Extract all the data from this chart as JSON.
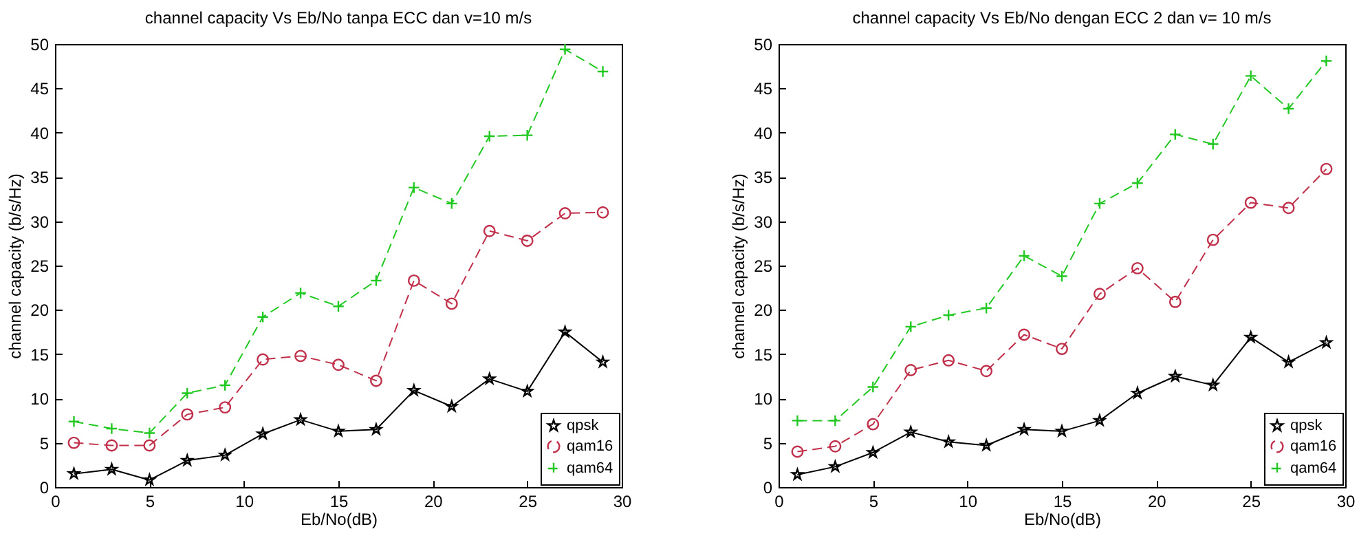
{
  "chart_data": [
    {
      "type": "line",
      "title": "channel capacity Vs Eb/No tanpa ECC dan v=10 m/s",
      "xlabel": "Eb/No(dB)",
      "ylabel": "channel capacity (b/s/Hz)",
      "x": [
        1,
        3,
        5,
        7,
        9,
        11,
        13,
        15,
        17,
        19,
        21,
        23,
        25,
        27,
        29
      ],
      "xlim": [
        0,
        30
      ],
      "xticks": [
        0,
        5,
        10,
        15,
        20,
        25,
        30
      ],
      "ylim": [
        0,
        50
      ],
      "yticks": [
        0,
        5,
        10,
        15,
        20,
        25,
        30,
        35,
        40,
        45,
        50
      ],
      "grid": false,
      "legend": "bottom right",
      "series": [
        {
          "name": "qpsk",
          "color": "#000000",
          "marker": "star",
          "line_style": "solid",
          "values": [
            1.5,
            2,
            0.8,
            3,
            3.6,
            6,
            7.6,
            6.3,
            6.5,
            10.9,
            9.1,
            12.2,
            10.8,
            17.5,
            14.1
          ]
        },
        {
          "name": "qam16",
          "color": "#c0304a",
          "marker": "circle",
          "line_style": "dashed",
          "values": [
            5,
            4.7,
            4.7,
            8.2,
            9,
            14.4,
            14.8,
            13.8,
            12,
            23.3,
            20.7,
            28.9,
            27.8,
            30.9,
            31
          ]
        },
        {
          "name": "qam64",
          "color": "#22c822",
          "marker": "cross",
          "line_style": "dashed",
          "values": [
            7.4,
            6.6,
            6.1,
            10.6,
            11.5,
            19.2,
            21.9,
            20.4,
            23.3,
            33.8,
            32,
            39.6,
            39.7,
            49.4,
            46.9
          ]
        }
      ]
    },
    {
      "type": "line",
      "title": "channel capacity Vs Eb/No dengan ECC 2 dan v= 10 m/s",
      "xlabel": "Eb/No(dB)",
      "ylabel": "channel capacity (b/s/Hz)",
      "x": [
        1,
        3,
        5,
        7,
        9,
        11,
        13,
        15,
        17,
        19,
        21,
        23,
        25,
        27,
        29
      ],
      "xlim": [
        0,
        30
      ],
      "xticks": [
        0,
        5,
        10,
        15,
        20,
        25,
        30
      ],
      "ylim": [
        0,
        50
      ],
      "yticks": [
        0,
        5,
        10,
        15,
        20,
        25,
        30,
        35,
        40,
        45,
        50
      ],
      "grid": false,
      "legend": "bottom right",
      "series": [
        {
          "name": "qpsk",
          "color": "#000000",
          "marker": "star",
          "line_style": "solid",
          "values": [
            1.4,
            2.3,
            3.9,
            6.2,
            5.1,
            4.7,
            6.5,
            6.3,
            7.5,
            10.6,
            12.5,
            11.5,
            16.9,
            14.1,
            16.3
          ]
        },
        {
          "name": "qam16",
          "color": "#c0304a",
          "marker": "circle",
          "line_style": "dashed",
          "values": [
            4,
            4.6,
            7.1,
            13.2,
            14.3,
            13.1,
            17.2,
            15.6,
            21.8,
            24.7,
            20.9,
            27.9,
            32.1,
            31.5,
            35.9
          ]
        },
        {
          "name": "qam64",
          "color": "#22c822",
          "marker": "cross",
          "line_style": "dashed",
          "values": [
            7.5,
            7.5,
            11.3,
            18.1,
            19.4,
            20.2,
            26.1,
            23.8,
            32,
            34.3,
            39.8,
            38.7,
            46.4,
            42.7,
            48.1
          ]
        }
      ]
    }
  ]
}
